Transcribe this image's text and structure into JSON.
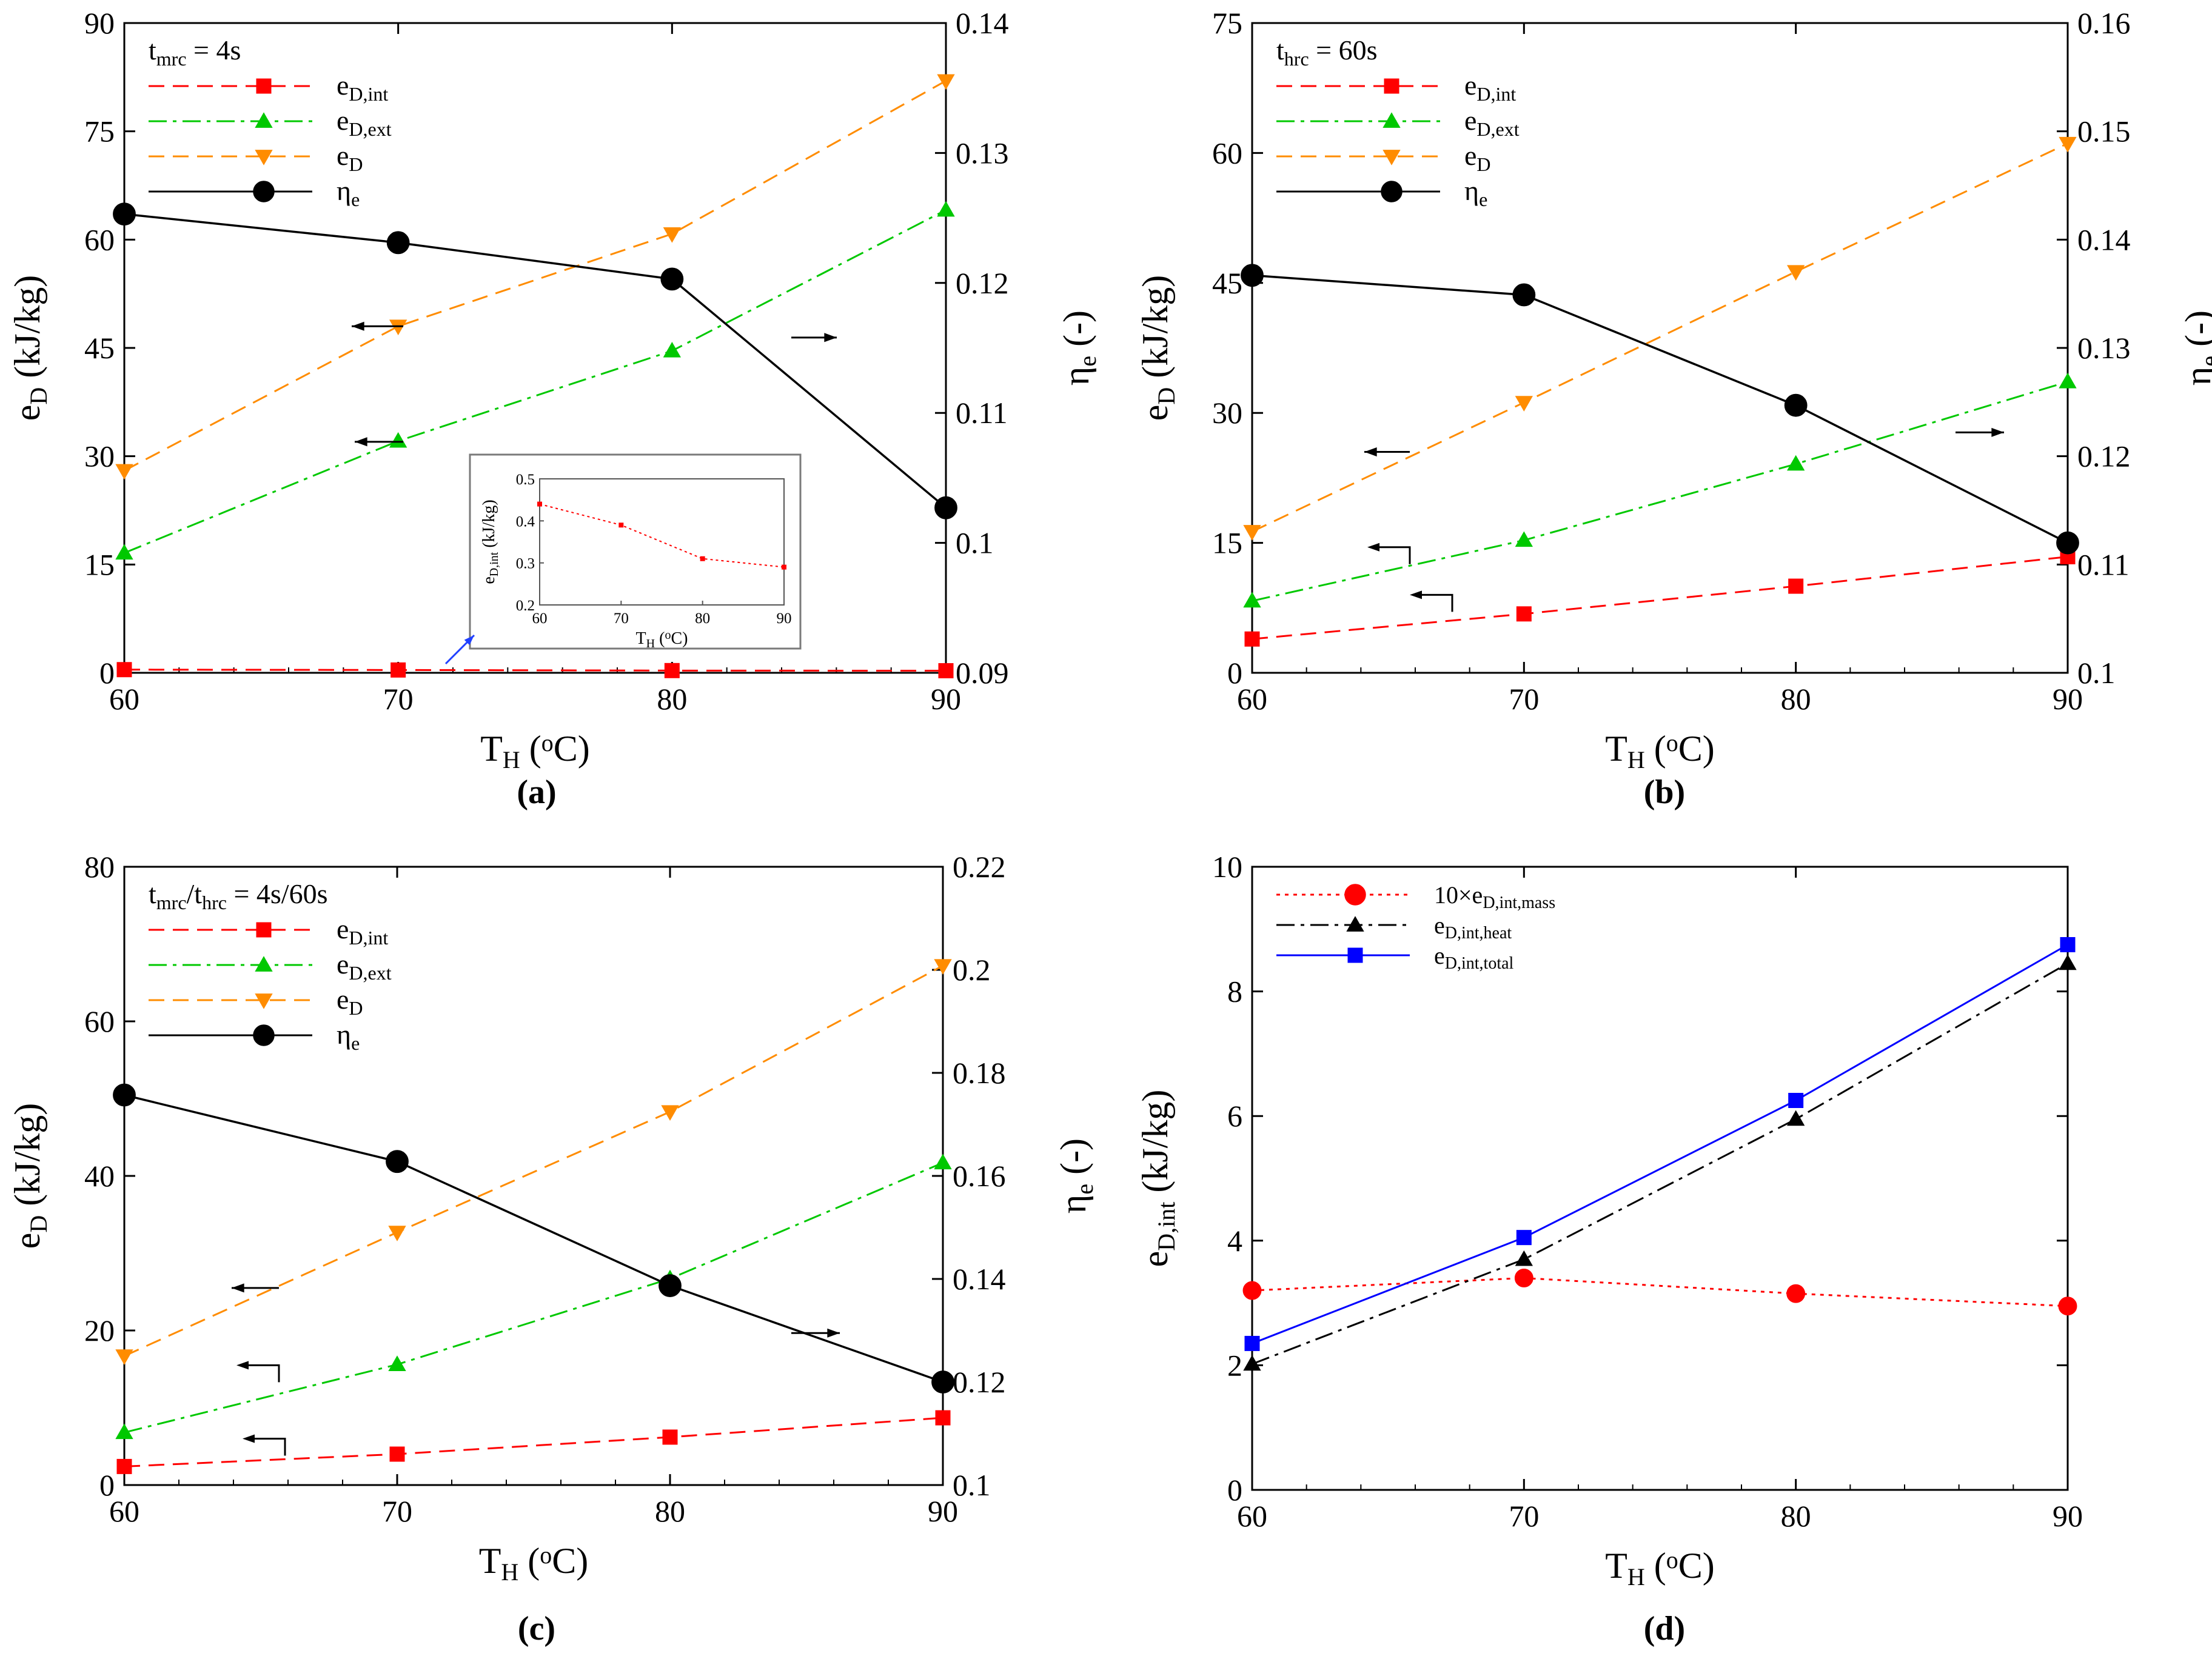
{
  "figure": {
    "panel_labels": [
      "(a)",
      "(b)",
      "(c)",
      "(d)"
    ]
  },
  "chart_data": [
    {
      "panel": "a",
      "type": "line",
      "xlabel": "T",
      "xlabel_sub": "H",
      "xlabel_unit": " (°C)",
      "ylabel_left": "e",
      "ylabel_left_sub": "D",
      "ylabel_left_unit": " (kJ/kg)",
      "ylabel_right": "η",
      "ylabel_right_sub": "e",
      "ylabel_right_unit": " (-)",
      "xlim": [
        60,
        90
      ],
      "ylim_left": [
        0,
        90
      ],
      "ylim_right": [
        0.09,
        0.14
      ],
      "x_ticks": [
        60,
        70,
        80,
        90
      ],
      "y_left_ticks": [
        0,
        15,
        30,
        45,
        60,
        75,
        90
      ],
      "y_right_ticks": [
        "0.09",
        "0.1",
        "0.11",
        "0.12",
        "0.13",
        "0.14"
      ],
      "legend_title": "t",
      "legend_title_sub": "mrc",
      "legend_title_rest": " = 4s",
      "legend_position": "top-left",
      "x": [
        60,
        70,
        80,
        90
      ],
      "series": [
        {
          "name": "e",
          "sub": "D,int",
          "axis": "left",
          "color": "#ff0000",
          "dash": "dash",
          "marker": "square",
          "values": [
            0.44,
            0.39,
            0.31,
            0.29
          ]
        },
        {
          "name": "e",
          "sub": "D,ext",
          "axis": "left",
          "color": "#00c800",
          "dash": "dashdot",
          "marker": "triangle-up",
          "values": [
            16.6,
            32.1,
            44.6,
            64.1
          ]
        },
        {
          "name": "e",
          "sub": "D",
          "axis": "left",
          "color": "#ff8c00",
          "dash": "dash",
          "marker": "triangle-down",
          "values": [
            28.0,
            48.0,
            60.8,
            82.0
          ]
        },
        {
          "name": "η",
          "sub": "e",
          "axis": "right",
          "color": "#000000",
          "dash": "solid",
          "marker": "circle",
          "values": [
            0.1253,
            0.1231,
            0.1203,
            0.1027
          ]
        }
      ],
      "inset": {
        "xlabel": "T",
        "xlabel_sub": "H",
        "xlabel_unit": " (°C)",
        "ylabel": "e",
        "ylabel_sub": "D,int",
        "ylabel_unit": " (kJ/kg)",
        "xlim": [
          60,
          90
        ],
        "ylim": [
          0.2,
          0.5
        ],
        "x_ticks": [
          60,
          70,
          80,
          90
        ],
        "y_ticks": [
          "0.2",
          "0.3",
          "0.4",
          "0.5"
        ],
        "x": [
          60,
          70,
          80,
          90
        ],
        "values": [
          0.44,
          0.39,
          0.31,
          0.29
        ],
        "color": "#ff0000"
      }
    },
    {
      "panel": "b",
      "type": "line",
      "xlabel": "T",
      "xlabel_sub": "H",
      "xlabel_unit": " (°C)",
      "ylabel_left": "e",
      "ylabel_left_sub": "D",
      "ylabel_left_unit": " (kJ/kg)",
      "ylabel_right": "η",
      "ylabel_right_sub": "e",
      "ylabel_right_unit": " (-)",
      "xlim": [
        60,
        90
      ],
      "ylim_left": [
        0,
        75
      ],
      "ylim_right": [
        0.1,
        0.16
      ],
      "x_ticks": [
        60,
        70,
        80,
        90
      ],
      "y_left_ticks": [
        0,
        15,
        30,
        45,
        60,
        75
      ],
      "y_right_ticks": [
        "0.1",
        "0.11",
        "0.12",
        "0.13",
        "0.14",
        "0.15",
        "0.16"
      ],
      "legend_title": "t",
      "legend_title_sub": "hrc",
      "legend_title_rest": " = 60s",
      "legend_position": "top-left",
      "x": [
        60,
        70,
        80,
        90
      ],
      "series": [
        {
          "name": "e",
          "sub": "D,int",
          "axis": "left",
          "color": "#ff0000",
          "dash": "dash",
          "marker": "square",
          "values": [
            3.9,
            6.8,
            10.0,
            13.4
          ]
        },
        {
          "name": "e",
          "sub": "D,ext",
          "axis": "left",
          "color": "#00c800",
          "dash": "dashdot",
          "marker": "triangle-up",
          "values": [
            8.3,
            15.3,
            24.1,
            33.6
          ]
        },
        {
          "name": "e",
          "sub": "D",
          "axis": "left",
          "color": "#ff8c00",
          "dash": "dash",
          "marker": "triangle-down",
          "values": [
            16.3,
            31.2,
            46.3,
            61.1
          ]
        },
        {
          "name": "η",
          "sub": "e",
          "axis": "right",
          "color": "#000000",
          "dash": "solid",
          "marker": "circle",
          "values": [
            0.1367,
            0.1349,
            0.1247,
            0.112
          ]
        }
      ]
    },
    {
      "panel": "c",
      "type": "line",
      "xlabel": "T",
      "xlabel_sub": "H",
      "xlabel_unit": " (°C)",
      "ylabel_left": "e",
      "ylabel_left_sub": "D",
      "ylabel_left_unit": " (kJ/kg)",
      "ylabel_right": "η",
      "ylabel_right_sub": "e",
      "ylabel_right_unit": " (-)",
      "xlim": [
        60,
        90
      ],
      "ylim_left": [
        0,
        80
      ],
      "ylim_right": [
        0.1,
        0.22
      ],
      "x_ticks": [
        60,
        70,
        80,
        90
      ],
      "y_left_ticks": [
        0,
        20,
        40,
        60,
        80
      ],
      "y_right_ticks": [
        "0.1",
        "0.12",
        "0.14",
        "0.16",
        "0.18",
        "0.2",
        "0.22"
      ],
      "legend_title": "t",
      "legend_title_sub": "mrc",
      "legend_title_rest": "/t",
      "legend_title_sub2": "hrc",
      "legend_title_rest2": " = 4s/60s",
      "legend_position": "top-left",
      "x": [
        60,
        70,
        80,
        90
      ],
      "series": [
        {
          "name": "e",
          "sub": "D,int",
          "axis": "left",
          "color": "#ff0000",
          "dash": "dash",
          "marker": "square",
          "values": [
            2.4,
            4.0,
            6.2,
            8.7
          ]
        },
        {
          "name": "e",
          "sub": "D,ext",
          "axis": "left",
          "color": "#00c800",
          "dash": "dashdot",
          "marker": "triangle-up",
          "values": [
            6.8,
            15.6,
            26.7,
            41.7
          ]
        },
        {
          "name": "e",
          "sub": "D",
          "axis": "left",
          "color": "#ff8c00",
          "dash": "dash",
          "marker": "triangle-down",
          "values": [
            16.7,
            32.7,
            48.3,
            67.2
          ]
        },
        {
          "name": "η",
          "sub": "e",
          "axis": "right",
          "color": "#000000",
          "dash": "solid",
          "marker": "circle",
          "values": [
            0.1757,
            0.1628,
            0.1387,
            0.12
          ]
        }
      ]
    },
    {
      "panel": "d",
      "type": "line",
      "xlabel": "T",
      "xlabel_sub": "H",
      "xlabel_unit": " (°C)",
      "ylabel_left": "e",
      "ylabel_left_sub": "D,int",
      "ylabel_left_unit": " (kJ/kg)",
      "xlim": [
        60,
        90
      ],
      "ylim_left": [
        0,
        10
      ],
      "x_ticks": [
        60,
        70,
        80,
        90
      ],
      "y_left_ticks": [
        0,
        2,
        4,
        6,
        8,
        10
      ],
      "legend_position": "top-left",
      "x": [
        60,
        70,
        80,
        90
      ],
      "series": [
        {
          "name": "10×e",
          "sub": "D,int,mass",
          "axis": "left",
          "color": "#ff0000",
          "dash": "dot",
          "marker": "circle",
          "values": [
            3.2,
            3.4,
            3.15,
            2.95
          ]
        },
        {
          "name": "e",
          "sub": "D,int,heat",
          "axis": "left",
          "color": "#000000",
          "dash": "dashdot",
          "marker": "triangle-up",
          "values": [
            2.02,
            3.7,
            5.95,
            8.45
          ]
        },
        {
          "name": "e",
          "sub": "D,int,total",
          "axis": "left",
          "color": "#0000ff",
          "dash": "solid",
          "marker": "square",
          "values": [
            2.35,
            4.05,
            6.25,
            8.75
          ]
        }
      ]
    }
  ]
}
